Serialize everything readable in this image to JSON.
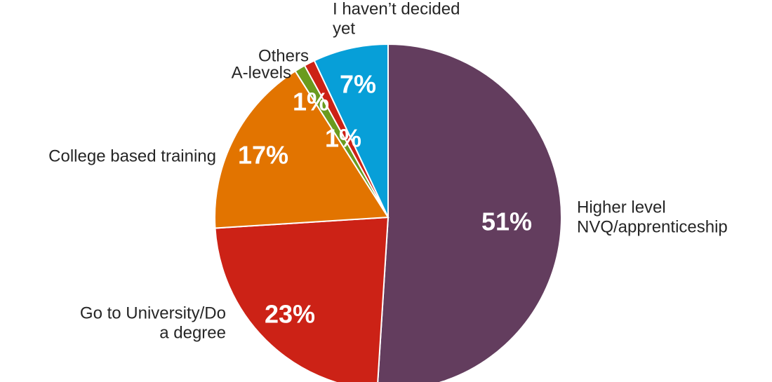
{
  "chart_data": {
    "type": "pie",
    "title": "",
    "start_angle_deg": 0,
    "direction": "clockwise",
    "slices": [
      {
        "label": [
          "Higher level",
          "NVQ/apprenticeship"
        ],
        "value": 51,
        "value_label": "51%",
        "color": "#633D5E"
      },
      {
        "label": [
          "Go to University/Do",
          "a degree"
        ],
        "value": 23,
        "value_label": "23%",
        "color": "#CC2216"
      },
      {
        "label": [
          "College based training"
        ],
        "value": 17,
        "value_label": "17%",
        "color": "#E27400"
      },
      {
        "label": [
          "A-levels"
        ],
        "value": 1,
        "value_label": "1%",
        "color": "#6A9B1E"
      },
      {
        "label": [
          "Others"
        ],
        "value": 1,
        "value_label": "1%",
        "color": "#CC2216"
      },
      {
        "label": [
          "I haven’t decided",
          "yet"
        ],
        "value": 7,
        "value_label": "7%",
        "color": "#079FD8"
      }
    ]
  }
}
